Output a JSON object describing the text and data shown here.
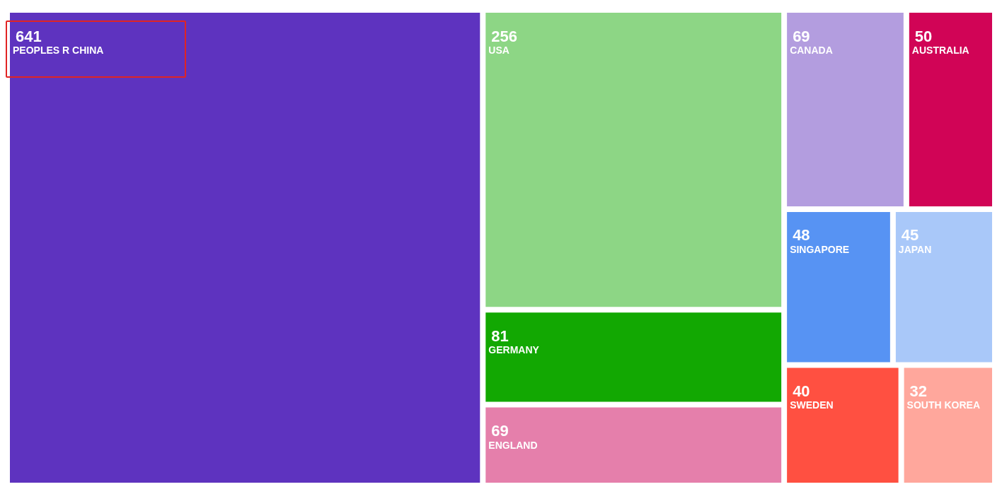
{
  "chart_data": {
    "type": "other",
    "categories": [
      "PEOPLES R CHINA",
      "USA",
      "GERMANY",
      "CANADA",
      "ENGLAND",
      "AUSTRALIA",
      "SINGAPORE",
      "JAPAN",
      "SWEDEN",
      "SOUTH KOREA"
    ],
    "values": [
      641,
      256,
      81,
      69,
      69,
      50,
      48,
      45,
      40,
      32
    ],
    "colors": [
      "#5e33bf",
      "#8dd685",
      "#12a802",
      "#b39ddf",
      "#e57fab",
      "#d10456",
      "#5793f3",
      "#a9c8f9",
      "#ff5041",
      "#ffa79c"
    ],
    "data_labels": true
  }
}
